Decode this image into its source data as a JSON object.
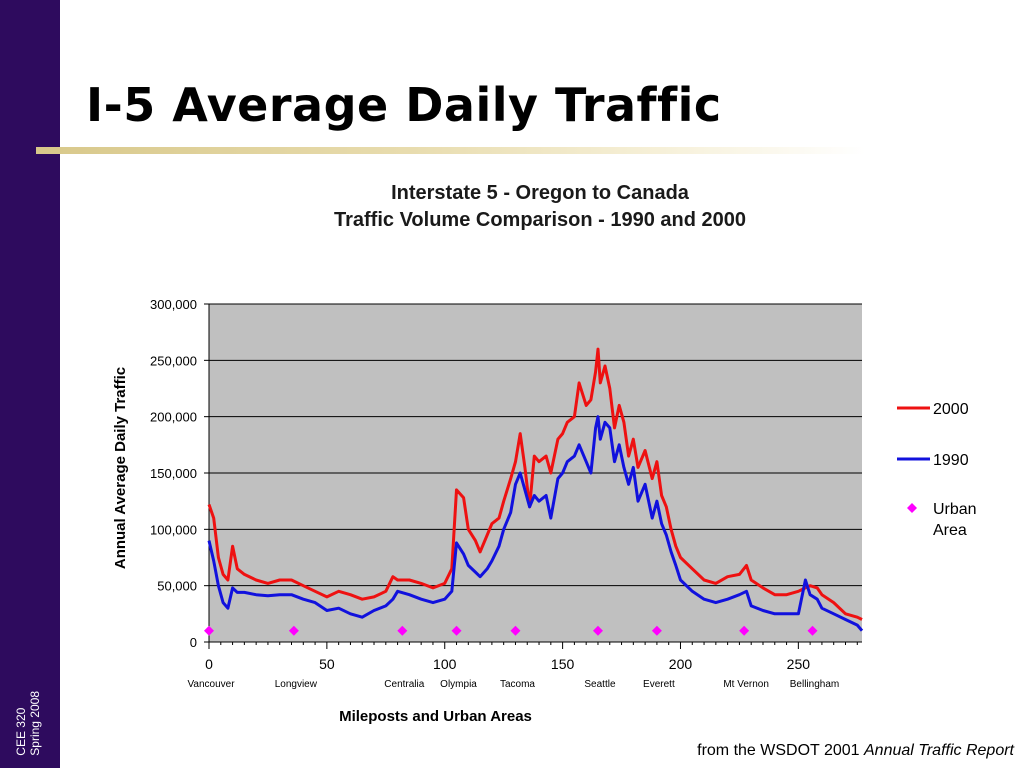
{
  "slide": {
    "title": "I-5 Average Daily Traffic",
    "side_label_line1": "CEE 320",
    "side_label_line2": "Spring 2008",
    "source_prefix": "from the WSDOT 2001 ",
    "source_italic": "Annual Traffic Report"
  },
  "colors": {
    "sidebar": "#2e0b5e",
    "series_2000": "#ee1111",
    "series_1990": "#1111dd",
    "urban_marker": "#ff00ff",
    "plot_bg": "#c0c0c0"
  },
  "chart_data": {
    "type": "line",
    "title": "Interstate 5 - Oregon to Canada",
    "subtitle": "Traffic Volume Comparison - 1990 and 2000",
    "xlabel": "Mileposts and Urban Areas",
    "ylabel": "Annual Average Daily Traffic",
    "xlim": [
      0,
      277
    ],
    "ylim": [
      0,
      300000
    ],
    "x_ticks": [
      0,
      50,
      100,
      150,
      200,
      250
    ],
    "y_ticks": [
      0,
      50000,
      100000,
      150000,
      200000,
      250000,
      300000
    ],
    "y_tick_labels": [
      "0",
      "50,000",
      "100,000",
      "150,000",
      "200,000",
      "250,000",
      "300,000"
    ],
    "grid": "horizontal",
    "legend": "right",
    "urban_areas": [
      {
        "name": "Vancouver",
        "milepost": 0
      },
      {
        "name": "Longview",
        "milepost": 36
      },
      {
        "name": "Centralia",
        "milepost": 82
      },
      {
        "name": "Olympia",
        "milepost": 105
      },
      {
        "name": "Tacoma",
        "milepost": 130
      },
      {
        "name": "Seattle",
        "milepost": 165
      },
      {
        "name": "Everett",
        "milepost": 190
      },
      {
        "name": "Mt Vernon",
        "milepost": 227
      },
      {
        "name": "Bellingham",
        "milepost": 256
      }
    ],
    "urban_marker_value": 10000,
    "urban_legend": "Urban Area",
    "series": [
      {
        "name": "2000",
        "x": [
          0,
          2,
          4,
          6,
          8,
          10,
          12,
          15,
          20,
          25,
          30,
          35,
          40,
          45,
          50,
          55,
          60,
          65,
          70,
          75,
          78,
          80,
          85,
          90,
          95,
          100,
          103,
          105,
          108,
          110,
          113,
          115,
          118,
          120,
          123,
          125,
          128,
          130,
          132,
          134,
          136,
          138,
          140,
          143,
          145,
          148,
          150,
          152,
          155,
          157,
          160,
          162,
          164,
          165,
          166,
          168,
          170,
          172,
          174,
          176,
          178,
          180,
          182,
          185,
          188,
          190,
          192,
          194,
          196,
          198,
          200,
          205,
          210,
          215,
          220,
          225,
          228,
          230,
          235,
          240,
          245,
          250,
          253,
          255,
          258,
          260,
          265,
          270,
          275,
          277
        ],
        "y": [
          122000,
          110000,
          75000,
          60000,
          55000,
          85000,
          65000,
          60000,
          55000,
          52000,
          55000,
          55000,
          50000,
          45000,
          40000,
          45000,
          42000,
          38000,
          40000,
          45000,
          58000,
          55000,
          55000,
          52000,
          48000,
          52000,
          65000,
          135000,
          128000,
          100000,
          90000,
          80000,
          95000,
          105000,
          110000,
          125000,
          145000,
          160000,
          185000,
          155000,
          120000,
          165000,
          160000,
          165000,
          150000,
          180000,
          185000,
          195000,
          200000,
          230000,
          210000,
          215000,
          240000,
          260000,
          230000,
          245000,
          225000,
          190000,
          210000,
          195000,
          165000,
          180000,
          155000,
          170000,
          145000,
          160000,
          130000,
          120000,
          100000,
          85000,
          75000,
          65000,
          55000,
          52000,
          58000,
          60000,
          68000,
          55000,
          48000,
          42000,
          42000,
          45000,
          48000,
          50000,
          48000,
          42000,
          35000,
          25000,
          22000,
          20000
        ]
      },
      {
        "name": "1990",
        "x": [
          0,
          2,
          4,
          6,
          8,
          10,
          12,
          15,
          20,
          25,
          30,
          35,
          40,
          45,
          50,
          55,
          60,
          65,
          70,
          75,
          78,
          80,
          85,
          90,
          95,
          100,
          103,
          105,
          108,
          110,
          113,
          115,
          118,
          120,
          123,
          125,
          128,
          130,
          132,
          134,
          136,
          138,
          140,
          143,
          145,
          148,
          150,
          152,
          155,
          157,
          160,
          162,
          164,
          165,
          166,
          168,
          170,
          172,
          174,
          176,
          178,
          180,
          182,
          185,
          188,
          190,
          192,
          194,
          196,
          198,
          200,
          205,
          210,
          215,
          220,
          225,
          228,
          230,
          235,
          240,
          245,
          250,
          253,
          255,
          258,
          260,
          265,
          270,
          275,
          277
        ],
        "y": [
          90000,
          72000,
          50000,
          35000,
          30000,
          48000,
          44000,
          44000,
          42000,
          41000,
          42000,
          42000,
          38000,
          35000,
          28000,
          30000,
          25000,
          22000,
          28000,
          32000,
          38000,
          45000,
          42000,
          38000,
          35000,
          38000,
          45000,
          88000,
          78000,
          68000,
          62000,
          58000,
          65000,
          72000,
          85000,
          100000,
          115000,
          140000,
          150000,
          135000,
          120000,
          130000,
          125000,
          130000,
          110000,
          145000,
          150000,
          160000,
          165000,
          175000,
          160000,
          150000,
          190000,
          200000,
          180000,
          195000,
          190000,
          160000,
          175000,
          155000,
          140000,
          155000,
          125000,
          140000,
          110000,
          125000,
          105000,
          95000,
          80000,
          68000,
          55000,
          45000,
          38000,
          35000,
          38000,
          42000,
          45000,
          32000,
          28000,
          25000,
          25000,
          25000,
          55000,
          42000,
          38000,
          30000,
          25000,
          20000,
          15000,
          10000
        ]
      }
    ]
  }
}
